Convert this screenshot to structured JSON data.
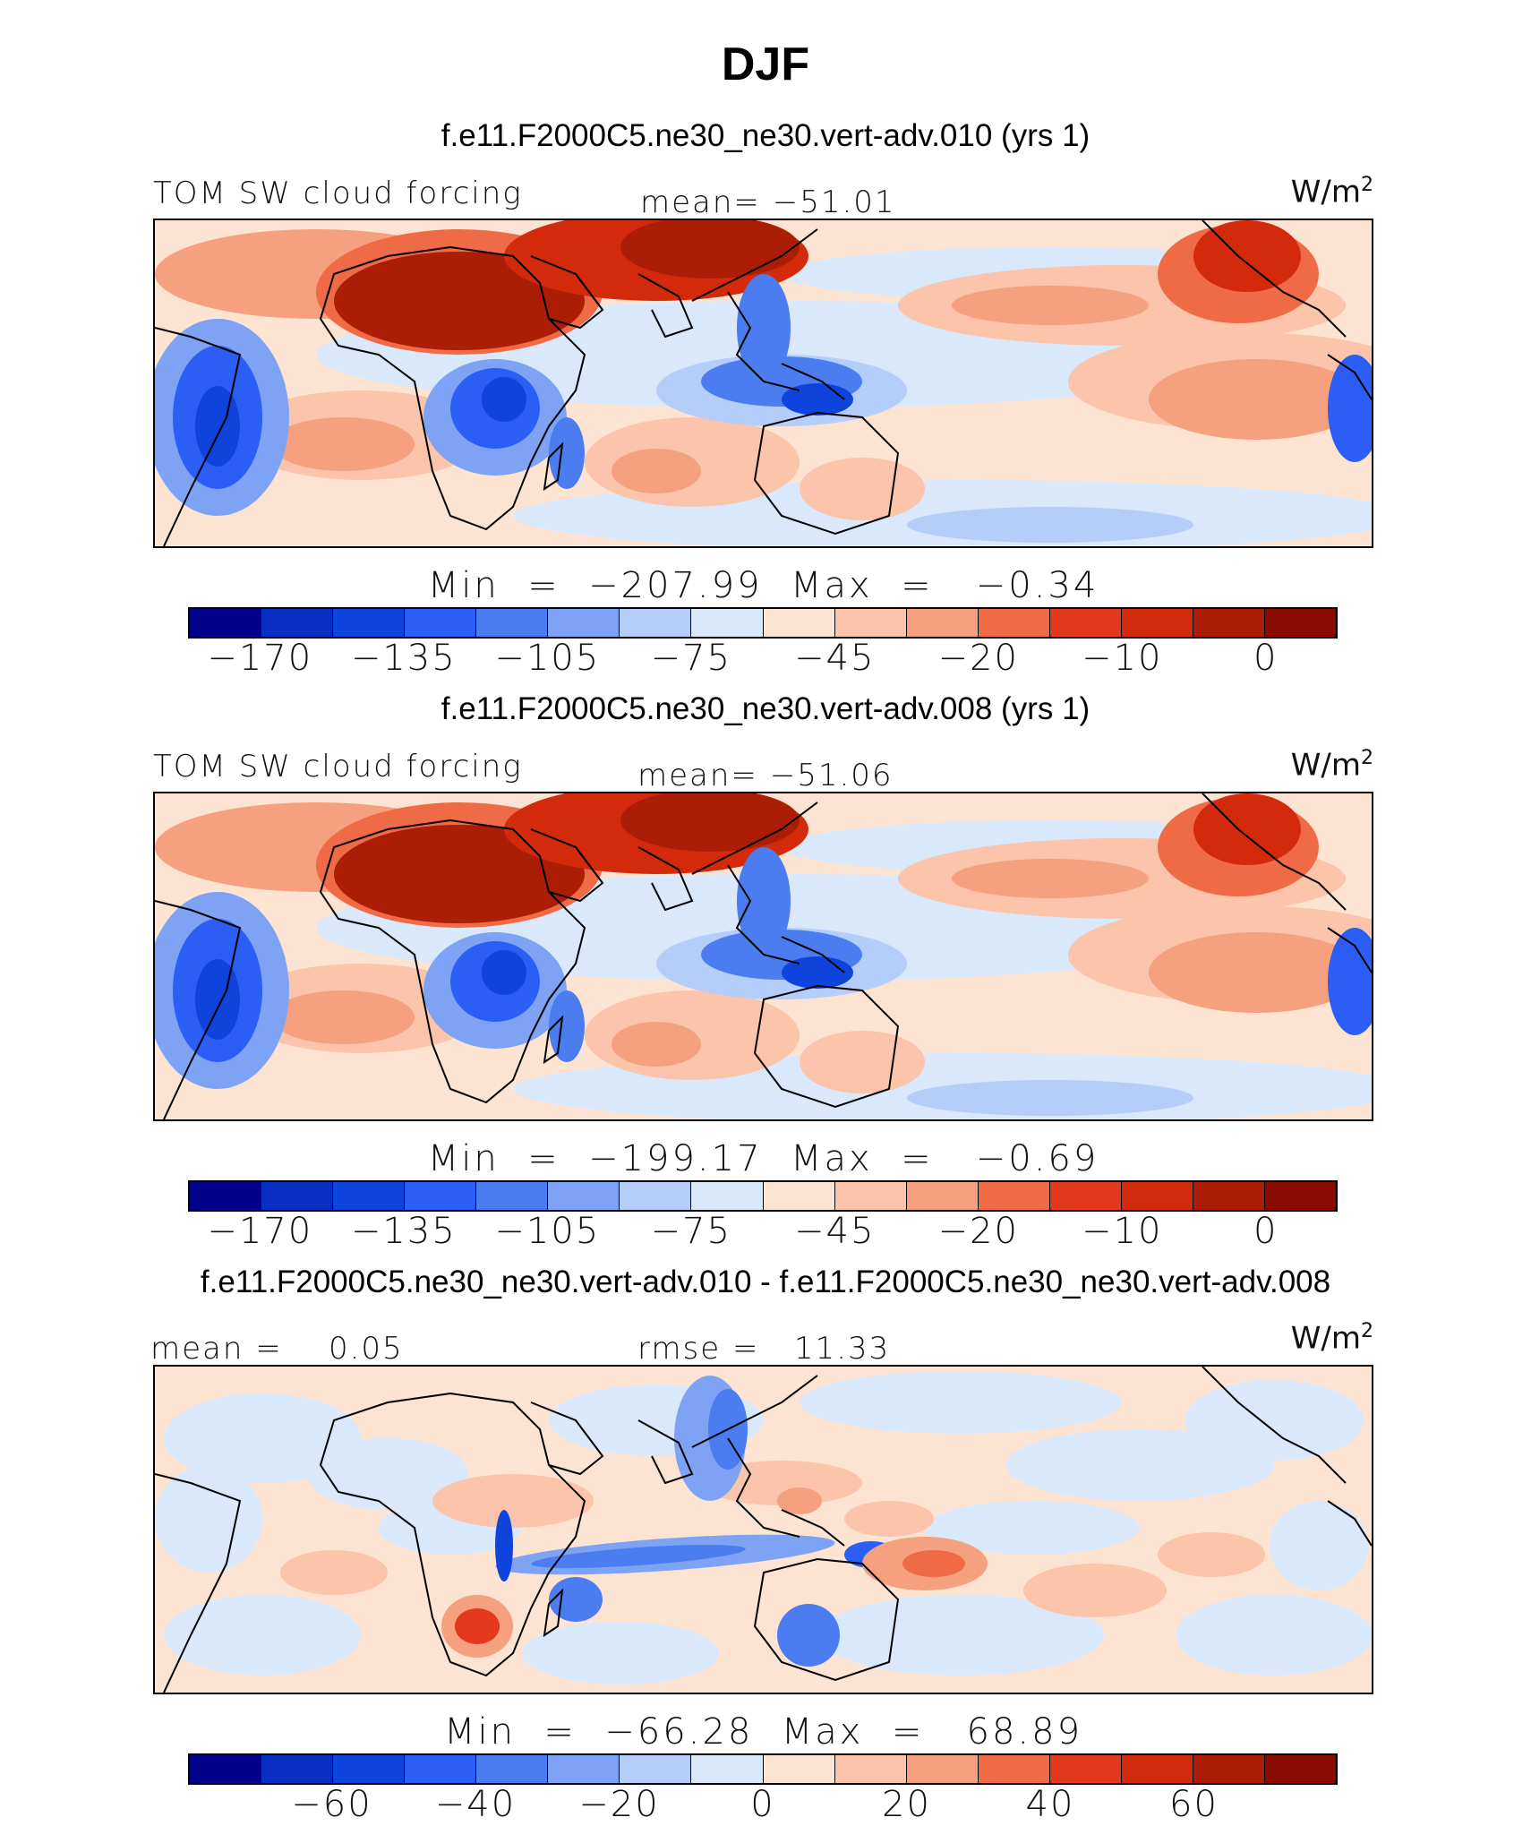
{
  "title": "DJF",
  "panels": [
    {
      "case_title": "f.e11.F2000C5.ne30_ne30.vert-adv.010 (yrs 1)",
      "left_label": "TOM SW cloud forcing",
      "center_label": "mean= −51.01",
      "units": "W/m",
      "units_exp": "2",
      "minmax": "Min  =  −207.99  Max  =   −0.34",
      "colorbar_ticks": [
        "−170",
        "−135",
        "−105",
        "−75",
        "−45",
        "−20",
        "−10",
        "0"
      ],
      "field": "control"
    },
    {
      "case_title": "f.e11.F2000C5.ne30_ne30.vert-adv.008 (yrs 1)",
      "left_label": "TOM SW cloud forcing",
      "center_label": "mean= −51.06",
      "units": "W/m",
      "units_exp": "2",
      "minmax": "Min  =  −199.17  Max  =   −0.69",
      "colorbar_ticks": [
        "−170",
        "−135",
        "−105",
        "−75",
        "−45",
        "−20",
        "−10",
        "0"
      ],
      "field": "control"
    },
    {
      "case_title": "f.e11.F2000C5.ne30_ne30.vert-adv.010 - f.e11.F2000C5.ne30_ne30.vert-adv.008",
      "left_label": "mean =    0.05",
      "center_label": "rmse =   11.33",
      "units": "W/m",
      "units_exp": "2",
      "minmax": "Min  =  −66.28  Max  =   68.89",
      "colorbar_ticks": [
        "−60",
        "−40",
        "−20",
        "0",
        "20",
        "40",
        "60"
      ],
      "field": "difference"
    }
  ],
  "colorbar_colors": [
    "#05008c",
    "#0a2ec2",
    "#0e44dc",
    "#2a5ef5",
    "#4b7df0",
    "#7ea3f5",
    "#b4cdf9",
    "#d9e8fb",
    "#fde4d2",
    "#fbc4ab",
    "#f5a07e",
    "#ef6b45",
    "#e5391e",
    "#d22a0a",
    "#ac1d05",
    "#880a00"
  ]
}
